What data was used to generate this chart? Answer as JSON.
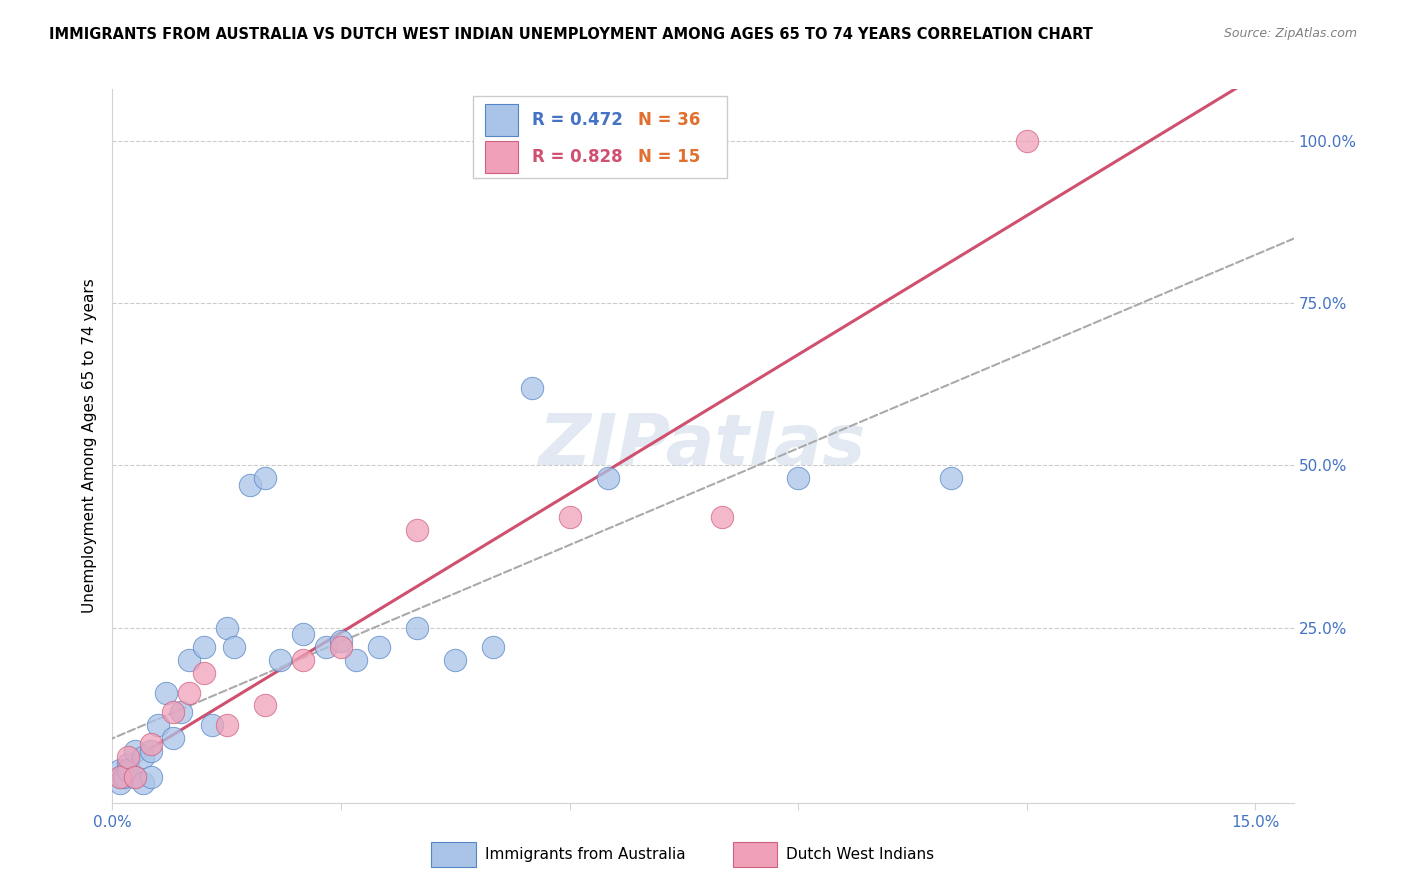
{
  "title": "IMMIGRANTS FROM AUSTRALIA VS DUTCH WEST INDIAN UNEMPLOYMENT AMONG AGES 65 TO 74 YEARS CORRELATION CHART",
  "source": "Source: ZipAtlas.com",
  "ylabel": "Unemployment Among Ages 65 to 74 years",
  "xlim": [
    0.0,
    0.155
  ],
  "ylim": [
    -0.02,
    1.08
  ],
  "australia_color": "#aac4e8",
  "dutch_color": "#f0a0b8",
  "australia_edge_color": "#5585c5",
  "dutch_edge_color": "#d06080",
  "australia_line_color": "#4060b0",
  "dutch_line_color": "#d05070",
  "background_color": "#ffffff",
  "grid_color": "#cccccc",
  "watermark": "ZIPatlas",
  "R_australia": "0.472",
  "N_australia": "36",
  "R_dutch": "0.828",
  "N_dutch": "15",
  "label_australia": "Immigrants from Australia",
  "label_dutch": "Dutch West Indians",
  "legend_color_R_aus": "#4472c4",
  "legend_color_R_dutch": "#d05070",
  "legend_color_N": "#e07030",
  "aus_x": [
    0.001,
    0.001,
    0.001,
    0.0015,
    0.002,
    0.002,
    0.003,
    0.003,
    0.004,
    0.004,
    0.005,
    0.005,
    0.006,
    0.007,
    0.008,
    0.009,
    0.01,
    0.012,
    0.013,
    0.015,
    0.016,
    0.018,
    0.02,
    0.022,
    0.025,
    0.028,
    0.03,
    0.032,
    0.035,
    0.04,
    0.045,
    0.05,
    0.055,
    0.065,
    0.09,
    0.11
  ],
  "aus_y": [
    0.02,
    0.03,
    0.01,
    0.02,
    0.04,
    0.03,
    0.02,
    0.06,
    0.01,
    0.05,
    0.06,
    0.02,
    0.1,
    0.15,
    0.08,
    0.12,
    0.2,
    0.22,
    0.1,
    0.25,
    0.22,
    0.47,
    0.48,
    0.2,
    0.24,
    0.22,
    0.23,
    0.2,
    0.22,
    0.25,
    0.2,
    0.22,
    0.62,
    0.48,
    0.48,
    0.48
  ],
  "dutch_x": [
    0.001,
    0.002,
    0.003,
    0.005,
    0.008,
    0.01,
    0.012,
    0.015,
    0.02,
    0.025,
    0.03,
    0.04,
    0.06,
    0.08,
    0.12
  ],
  "dutch_y": [
    0.02,
    0.05,
    0.02,
    0.07,
    0.12,
    0.15,
    0.18,
    0.1,
    0.13,
    0.2,
    0.22,
    0.4,
    0.42,
    0.42,
    1.0
  ]
}
